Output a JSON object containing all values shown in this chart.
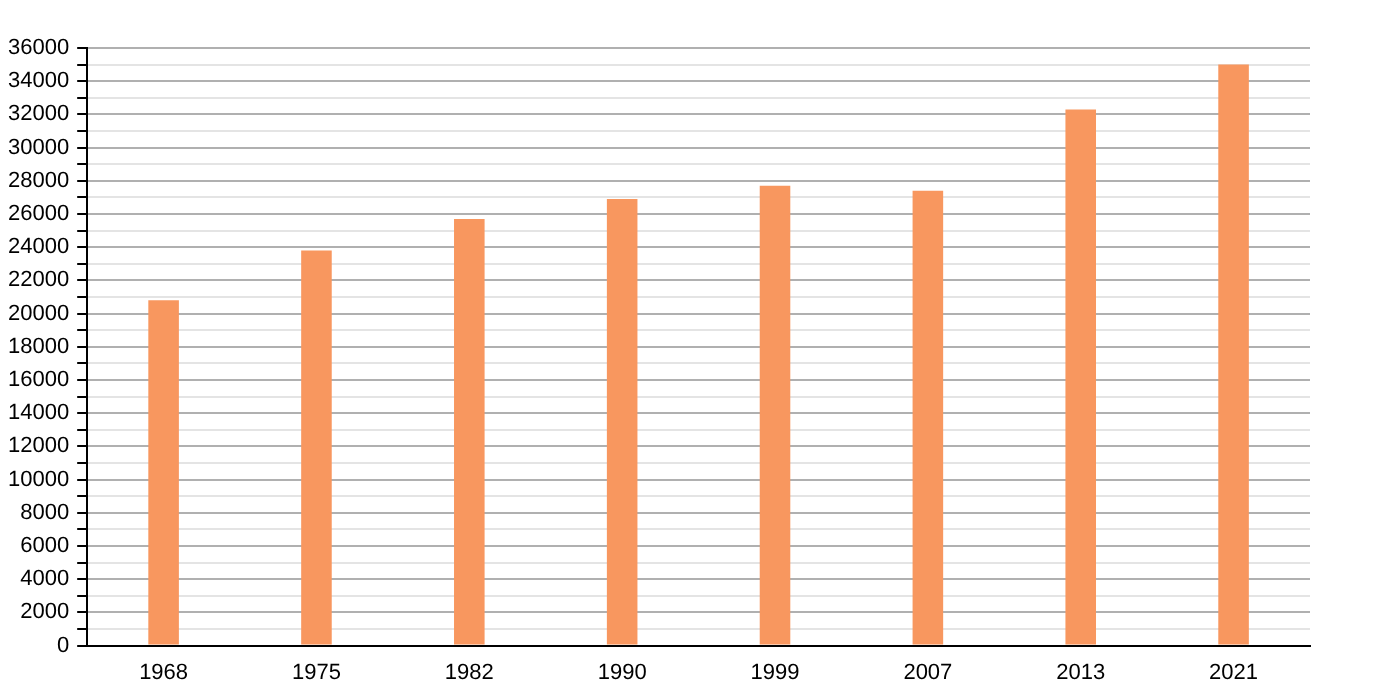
{
  "chart_data": {
    "type": "bar",
    "categories": [
      "1968",
      "1975",
      "1982",
      "1990",
      "1999",
      "2007",
      "2013",
      "2021"
    ],
    "values": [
      20800,
      23800,
      25700,
      26900,
      27700,
      27400,
      32300,
      35000
    ],
    "color": "#f8975f",
    "ylim": [
      0,
      36000
    ],
    "yticks": [
      0,
      {
        "value": 1000,
        "label": null
      },
      2000,
      {
        "value": 3000,
        "label": null
      },
      4000,
      {
        "value": 5000,
        "label": null
      },
      6000,
      {
        "value": 7000,
        "label": null
      },
      8000,
      {
        "value": 9000,
        "label": null
      },
      10000,
      {
        "value": 11000,
        "label": null
      },
      12000,
      {
        "value": 13000,
        "label": null
      },
      14000,
      {
        "value": 15000,
        "label": null
      },
      16000,
      {
        "value": 17000,
        "label": null
      },
      18000,
      {
        "value": 19000,
        "label": null
      },
      20000,
      {
        "value": 21000,
        "label": null
      },
      22000,
      {
        "value": 23000,
        "label": null
      },
      24000,
      {
        "value": 25000,
        "label": null
      },
      26000,
      {
        "value": 27000,
        "label": null
      },
      28000,
      {
        "value": 29000,
        "label": null
      },
      30000,
      {
        "value": 31000,
        "label": null
      },
      32000,
      {
        "value": 33000,
        "label": null
      },
      34000,
      {
        "value": 35000,
        "label": null
      },
      36000
    ],
    "grid": "y",
    "legend": false
  }
}
